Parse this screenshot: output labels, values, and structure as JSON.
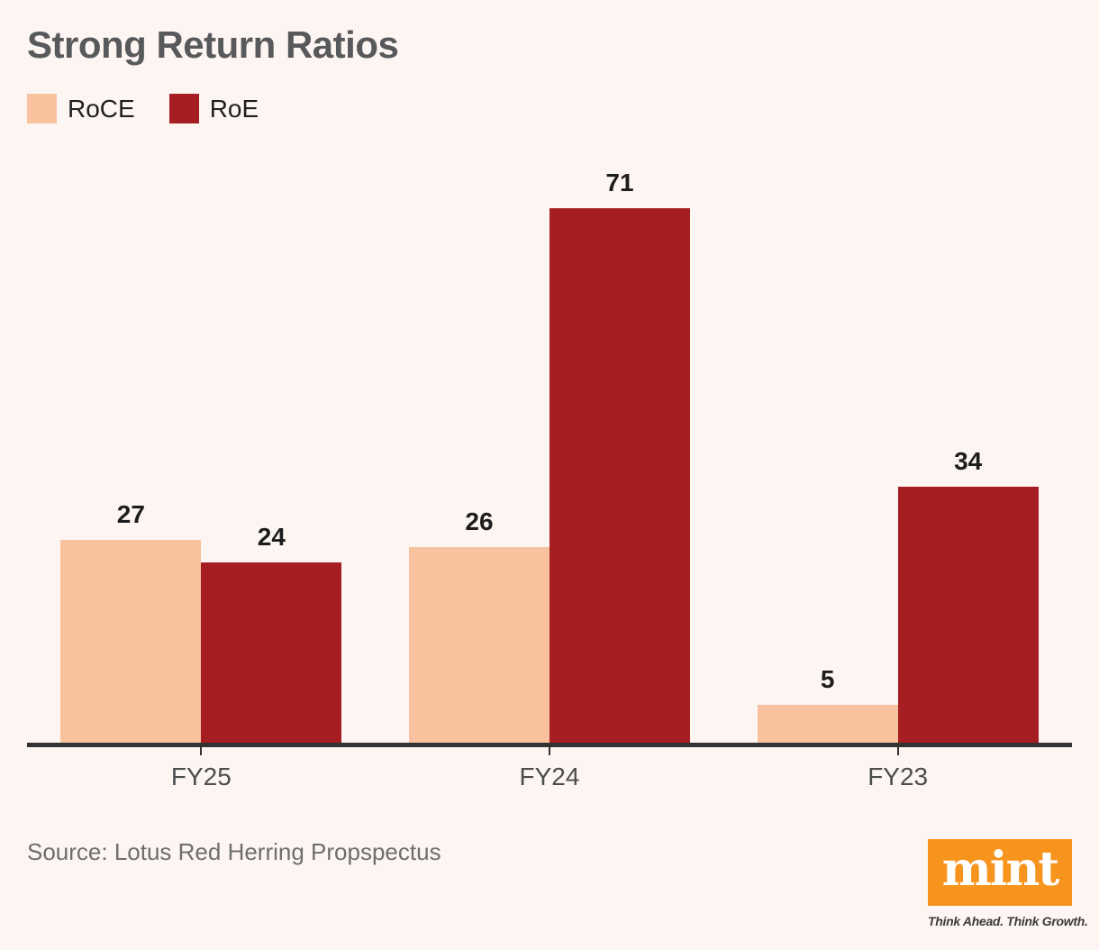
{
  "title": "Strong Return Ratios",
  "source": "Source: Lotus Red Herring Propspectus",
  "branding": {
    "logo_text": "mint",
    "tagline": "Think Ahead. Think Growth.",
    "logo_bg_color": "#F7941E"
  },
  "colors": {
    "background": "#FDF5F2",
    "title": "#58595B",
    "axis": "#333333",
    "value_label": "#1D1D1D",
    "category_label": "#4D4D4D",
    "source_text": "#6E6E6E"
  },
  "chart_data": {
    "type": "bar",
    "title": "Strong Return Ratios",
    "categories": [
      "FY25",
      "FY24",
      "FY23"
    ],
    "series": [
      {
        "name": "RoCE",
        "color": "#F8C29E",
        "values": [
          27,
          26,
          5
        ]
      },
      {
        "name": "RoE",
        "color": "#A71E22",
        "values": [
          24,
          71,
          34
        ]
      }
    ],
    "xlabel": "",
    "ylabel": "",
    "ylim": [
      0,
      75
    ],
    "grid": false,
    "legend_position": "top-left",
    "value_labels": true
  }
}
